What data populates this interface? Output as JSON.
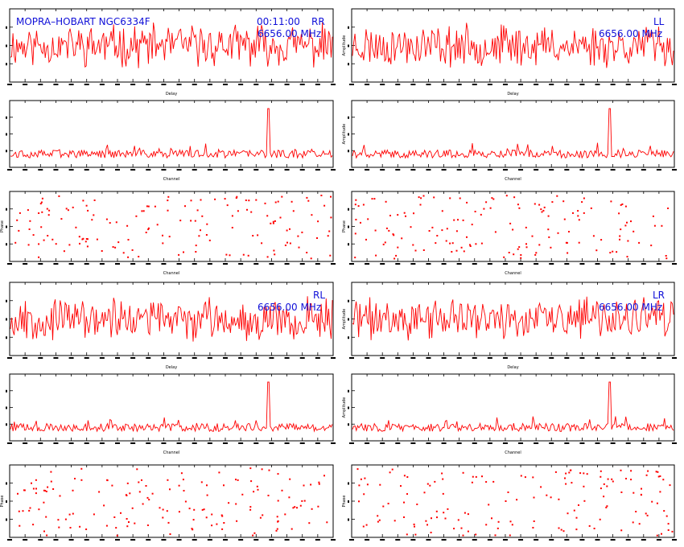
{
  "header": {
    "source": "MOPRA–HOBART NGC6334F",
    "time": "00:11:00",
    "freq": "6656.00 MHz"
  },
  "colors": {
    "trace": "#ff0000",
    "overlay_text": "#1010d8",
    "axes": "#000000",
    "background": "#ffffff"
  },
  "chart_data": [
    {
      "id": "RR-amp-delay",
      "type": "line",
      "xlabel": "Delay",
      "ylabel": "",
      "pol_label": "RR",
      "seed": 11,
      "peak": null
    },
    {
      "id": "LL-amp-delay",
      "type": "line",
      "xlabel": "Delay",
      "ylabel": "Amplitude",
      "pol_label": "LL",
      "seed": 23,
      "peak": null
    },
    {
      "id": "RR-amp-channel",
      "type": "line",
      "xlabel": "Channel",
      "ylabel": "",
      "pol_label": "",
      "seed": 37,
      "peak": 0.8
    },
    {
      "id": "LL-amp-channel",
      "type": "line",
      "xlabel": "Channel",
      "ylabel": "Amplitude",
      "pol_label": "",
      "seed": 41,
      "peak": 0.8
    },
    {
      "id": "RR-phase-channel",
      "type": "scatter",
      "xlabel": "Channel",
      "ylabel": "Phase",
      "pol_label": "",
      "seed": 53,
      "peak": null
    },
    {
      "id": "LL-phase-channel",
      "type": "scatter",
      "xlabel": "Channel",
      "ylabel": "Phase",
      "pol_label": "",
      "seed": 59,
      "peak": null
    },
    {
      "id": "RL-amp-delay",
      "type": "line",
      "xlabel": "Delay",
      "ylabel": "",
      "pol_label": "RL",
      "seed": 67,
      "peak": null
    },
    {
      "id": "LR-amp-delay",
      "type": "line",
      "xlabel": "Delay",
      "ylabel": "Amplitude",
      "pol_label": "LR",
      "seed": 71,
      "peak": null
    },
    {
      "id": "RL-amp-channel",
      "type": "line",
      "xlabel": "Channel",
      "ylabel": "",
      "pol_label": "",
      "seed": 79,
      "peak": 0.8
    },
    {
      "id": "LR-amp-channel",
      "type": "line",
      "xlabel": "Channel",
      "ylabel": "Amplitude",
      "pol_label": "",
      "seed": 83,
      "peak": 0.8
    },
    {
      "id": "RL-phase-channel",
      "type": "scatter",
      "xlabel": "Channel",
      "ylabel": "Phase",
      "pol_label": "",
      "seed": 89,
      "peak": null
    },
    {
      "id": "LR-phase-channel",
      "type": "scatter",
      "xlabel": "Channel",
      "ylabel": "Phase",
      "pol_label": "",
      "seed": 97,
      "peak": null
    }
  ]
}
